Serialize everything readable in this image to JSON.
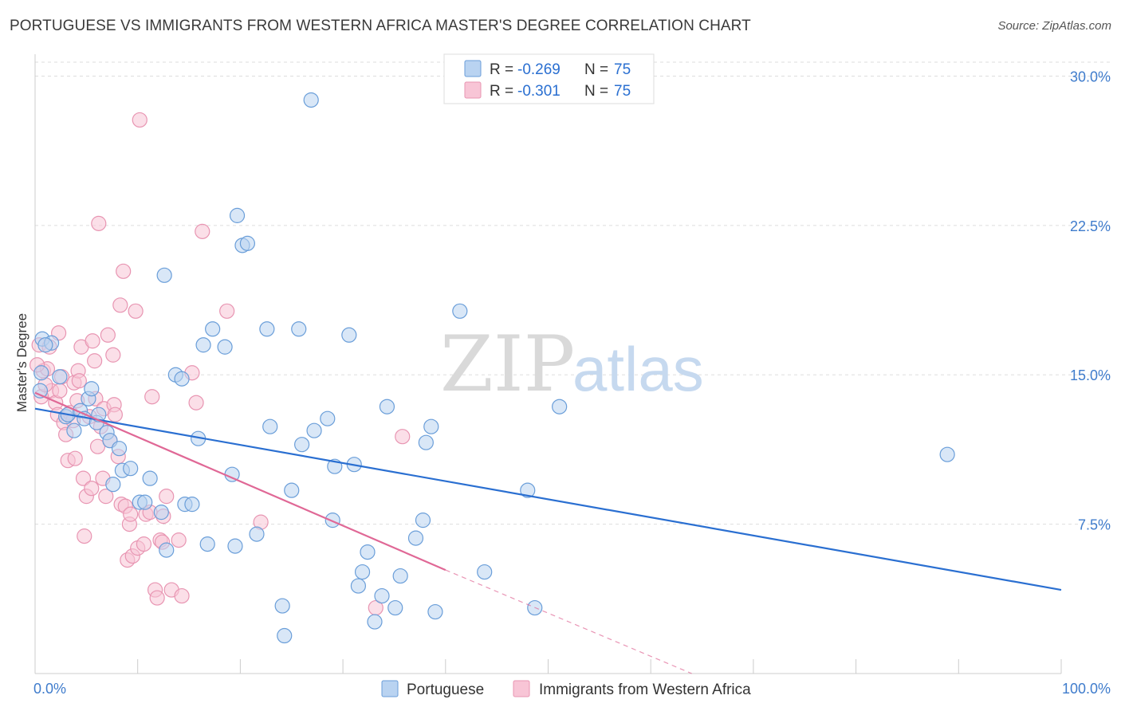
{
  "title": "PORTUGUESE VS IMMIGRANTS FROM WESTERN AFRICA MASTER'S DEGREE CORRELATION CHART",
  "source": "Source: ZipAtlas.com",
  "watermark": {
    "zip": "ZIP",
    "atlas": "atlas"
  },
  "legend": {
    "rows": [
      {
        "r_label": "R =",
        "r_value": "-0.269",
        "n_label": "N =",
        "n_value": "75"
      },
      {
        "r_label": "R =",
        "r_value": "-0.301",
        "n_label": "N =",
        "n_value": "75"
      }
    ]
  },
  "colors": {
    "blue_fill": "#b9d3f1",
    "blue_stroke": "#6a9ed9",
    "blue_line": "#2a6fd1",
    "pink_fill": "#f8c5d6",
    "pink_stroke": "#e895b2",
    "pink_line": "#e06896",
    "grid": "#dddddd",
    "axis_text": "#3f7ccc"
  },
  "chart_data": {
    "type": "scatter",
    "title": "PORTUGUESE VS IMMIGRANTS FROM WESTERN AFRICA MASTER'S DEGREE CORRELATION CHART",
    "xlabel": "",
    "ylabel": "Master's Degree",
    "xlim": [
      0,
      100
    ],
    "ylim": [
      0,
      30
    ],
    "x_tick_labels": [
      "0.0%",
      "100.0%"
    ],
    "y_ticks": [
      7.5,
      15.0,
      22.5,
      30.0
    ],
    "y_tick_labels": [
      "7.5%",
      "15.0%",
      "22.5%",
      "30.0%"
    ],
    "grid": true,
    "legend_position": "top-center",
    "series": [
      {
        "name": "Portuguese",
        "r": -0.269,
        "n": 75,
        "trend": {
          "x": [
            0,
            100
          ],
          "y": [
            13.3,
            4.2
          ]
        },
        "points": [
          [
            0.5,
            14.2
          ],
          [
            0.7,
            16.8
          ],
          [
            1.6,
            16.6
          ],
          [
            2.4,
            14.9
          ],
          [
            3.0,
            12.9
          ],
          [
            3.2,
            13.0
          ],
          [
            3.8,
            12.2
          ],
          [
            4.4,
            13.2
          ],
          [
            4.8,
            12.8
          ],
          [
            5.2,
            13.8
          ],
          [
            5.5,
            14.3
          ],
          [
            6.0,
            12.6
          ],
          [
            6.2,
            13.0
          ],
          [
            7.0,
            12.1
          ],
          [
            7.3,
            11.7
          ],
          [
            7.6,
            9.5
          ],
          [
            8.2,
            11.3
          ],
          [
            8.5,
            10.2
          ],
          [
            9.3,
            10.3
          ],
          [
            10.2,
            8.6
          ],
          [
            10.7,
            8.6
          ],
          [
            11.2,
            9.8
          ],
          [
            12.3,
            8.1
          ],
          [
            12.6,
            20.0
          ],
          [
            12.8,
            6.2
          ],
          [
            13.7,
            15.0
          ],
          [
            14.3,
            14.8
          ],
          [
            14.6,
            8.5
          ],
          [
            15.3,
            8.5
          ],
          [
            15.9,
            11.8
          ],
          [
            16.4,
            16.5
          ],
          [
            16.8,
            6.5
          ],
          [
            17.3,
            17.3
          ],
          [
            18.5,
            16.4
          ],
          [
            19.2,
            10.0
          ],
          [
            19.5,
            6.4
          ],
          [
            19.7,
            23.0
          ],
          [
            20.2,
            21.5
          ],
          [
            20.7,
            21.6
          ],
          [
            21.6,
            7.0
          ],
          [
            22.6,
            17.3
          ],
          [
            22.9,
            12.4
          ],
          [
            24.1,
            3.4
          ],
          [
            24.3,
            1.9
          ],
          [
            25.0,
            9.2
          ],
          [
            25.7,
            17.3
          ],
          [
            26.0,
            11.5
          ],
          [
            26.9,
            28.8
          ],
          [
            27.2,
            12.2
          ],
          [
            28.5,
            12.8
          ],
          [
            29.0,
            7.7
          ],
          [
            29.2,
            10.4
          ],
          [
            30.6,
            17.0
          ],
          [
            31.1,
            10.5
          ],
          [
            31.5,
            4.4
          ],
          [
            31.9,
            5.1
          ],
          [
            32.4,
            6.1
          ],
          [
            33.1,
            2.6
          ],
          [
            33.8,
            3.9
          ],
          [
            34.3,
            13.4
          ],
          [
            35.1,
            3.3
          ],
          [
            35.6,
            4.9
          ],
          [
            37.1,
            6.8
          ],
          [
            37.8,
            7.7
          ],
          [
            38.1,
            11.6
          ],
          [
            38.6,
            12.4
          ],
          [
            39.0,
            3.1
          ],
          [
            41.4,
            18.2
          ],
          [
            43.8,
            5.1
          ],
          [
            48.0,
            9.2
          ],
          [
            48.7,
            3.3
          ],
          [
            51.1,
            13.4
          ],
          [
            88.9,
            11.0
          ],
          [
            1.0,
            16.5
          ],
          [
            0.6,
            15.1
          ]
        ]
      },
      {
        "name": "Immigrants from Western Africa",
        "r": -0.301,
        "n": 75,
        "trend": {
          "x": [
            0,
            40
          ],
          "y": [
            14.1,
            5.2
          ]
        },
        "trend_dashed": {
          "x": [
            40,
            64
          ],
          "y": [
            5.2,
            0.0
          ]
        },
        "points": [
          [
            0.4,
            16.5
          ],
          [
            0.8,
            15.2
          ],
          [
            1.2,
            15.3
          ],
          [
            1.6,
            14.2
          ],
          [
            2.0,
            13.6
          ],
          [
            2.2,
            13.0
          ],
          [
            2.3,
            17.1
          ],
          [
            2.6,
            14.9
          ],
          [
            2.8,
            12.6
          ],
          [
            3.0,
            12.0
          ],
          [
            3.2,
            10.7
          ],
          [
            3.4,
            13.1
          ],
          [
            3.7,
            12.7
          ],
          [
            3.8,
            14.6
          ],
          [
            3.9,
            10.8
          ],
          [
            4.1,
            13.7
          ],
          [
            4.2,
            15.2
          ],
          [
            4.3,
            14.7
          ],
          [
            4.5,
            16.4
          ],
          [
            4.7,
            9.8
          ],
          [
            4.8,
            6.9
          ],
          [
            5.0,
            8.9
          ],
          [
            5.3,
            12.9
          ],
          [
            5.5,
            9.3
          ],
          [
            5.6,
            16.7
          ],
          [
            5.8,
            15.7
          ],
          [
            5.9,
            13.8
          ],
          [
            6.1,
            11.4
          ],
          [
            6.2,
            22.6
          ],
          [
            6.4,
            12.4
          ],
          [
            6.6,
            9.8
          ],
          [
            6.7,
            13.3
          ],
          [
            6.9,
            8.9
          ],
          [
            7.1,
            17.0
          ],
          [
            7.3,
            11.7
          ],
          [
            7.6,
            16.0
          ],
          [
            7.7,
            13.5
          ],
          [
            7.8,
            13.0
          ],
          [
            8.1,
            10.9
          ],
          [
            8.3,
            18.5
          ],
          [
            8.4,
            8.5
          ],
          [
            8.6,
            20.2
          ],
          [
            8.8,
            8.4
          ],
          [
            9.0,
            5.7
          ],
          [
            9.2,
            7.5
          ],
          [
            9.3,
            8.0
          ],
          [
            9.5,
            5.9
          ],
          [
            9.8,
            18.2
          ],
          [
            10.0,
            6.3
          ],
          [
            10.2,
            27.8
          ],
          [
            10.6,
            6.5
          ],
          [
            10.8,
            8.0
          ],
          [
            11.2,
            8.1
          ],
          [
            11.4,
            13.9
          ],
          [
            11.7,
            4.2
          ],
          [
            11.9,
            3.8
          ],
          [
            12.2,
            6.7
          ],
          [
            12.4,
            6.6
          ],
          [
            12.5,
            7.9
          ],
          [
            12.8,
            8.9
          ],
          [
            13.3,
            4.2
          ],
          [
            14.0,
            6.7
          ],
          [
            14.3,
            3.9
          ],
          [
            15.3,
            15.1
          ],
          [
            15.7,
            13.6
          ],
          [
            16.3,
            22.2
          ],
          [
            18.7,
            18.2
          ],
          [
            22.0,
            7.6
          ],
          [
            33.2,
            3.3
          ],
          [
            35.8,
            11.9
          ],
          [
            0.6,
            13.9
          ],
          [
            1.0,
            14.5
          ],
          [
            1.4,
            16.4
          ],
          [
            0.2,
            15.5
          ],
          [
            2.4,
            14.2
          ]
        ]
      }
    ]
  }
}
